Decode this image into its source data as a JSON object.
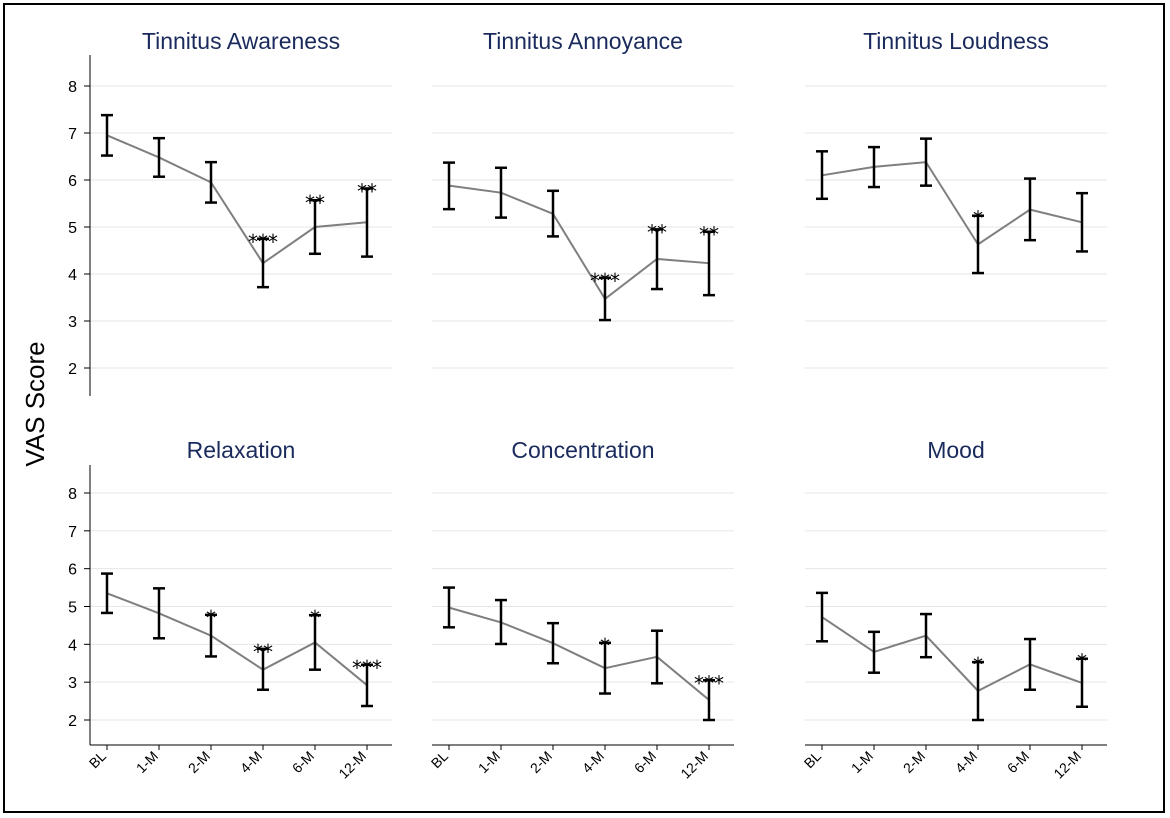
{
  "chart_data": {
    "type": "line",
    "ylabel": "VAS Score",
    "categories": [
      "BL",
      "1-M",
      "2-M",
      "4-M",
      "6-M",
      "12-M"
    ],
    "yticks": [
      2,
      3,
      4,
      5,
      6,
      7,
      8
    ],
    "ylim": [
      1.5,
      8.5
    ],
    "panels": [
      {
        "title": "Tinnitus Awareness",
        "means": [
          6.95,
          6.48,
          5.95,
          4.23,
          5.0,
          5.1
        ],
        "ci_low": [
          6.52,
          6.07,
          5.52,
          3.72,
          4.43,
          4.37
        ],
        "ci_high": [
          7.38,
          6.89,
          6.38,
          4.75,
          5.57,
          5.82
        ],
        "significance": [
          "",
          "",
          "",
          "***",
          "**",
          "**"
        ]
      },
      {
        "title": "Tinnitus Annoyance",
        "means": [
          5.88,
          5.73,
          5.28,
          3.47,
          4.32,
          4.23
        ],
        "ci_low": [
          5.38,
          5.2,
          4.8,
          3.02,
          3.68,
          3.55
        ],
        "ci_high": [
          6.37,
          6.26,
          5.77,
          3.92,
          4.95,
          4.9
        ],
        "significance": [
          "",
          "",
          "",
          "***",
          "**",
          "**"
        ]
      },
      {
        "title": "Tinnitus Loudness",
        "means": [
          6.1,
          6.28,
          6.38,
          4.63,
          5.37,
          5.1
        ],
        "ci_low": [
          5.6,
          5.85,
          5.88,
          4.02,
          4.72,
          4.48
        ],
        "ci_high": [
          6.61,
          6.7,
          6.88,
          5.24,
          6.03,
          5.72
        ],
        "significance": [
          "",
          "",
          "",
          "*",
          "",
          ""
        ]
      },
      {
        "title": "Relaxation",
        "means": [
          5.35,
          4.82,
          4.23,
          3.33,
          4.05,
          2.92
        ],
        "ci_low": [
          4.83,
          4.16,
          3.68,
          2.8,
          3.33,
          2.37
        ],
        "ci_high": [
          5.87,
          5.48,
          4.78,
          3.88,
          4.77,
          3.46
        ],
        "significance": [
          "",
          "",
          "*",
          "**",
          "*",
          "***"
        ]
      },
      {
        "title": "Concentration",
        "means": [
          4.97,
          4.58,
          4.03,
          3.37,
          3.67,
          2.53
        ],
        "ci_low": [
          4.45,
          4.01,
          3.5,
          2.7,
          2.97,
          2.0
        ],
        "ci_high": [
          5.5,
          5.17,
          4.56,
          4.04,
          4.36,
          3.05
        ],
        "significance": [
          "",
          "",
          "",
          "*",
          "",
          "***"
        ]
      },
      {
        "title": "Mood",
        "means": [
          4.72,
          3.8,
          4.23,
          2.77,
          3.47,
          2.98
        ],
        "ci_low": [
          4.08,
          3.25,
          3.66,
          2.0,
          2.8,
          2.35
        ],
        "ci_high": [
          5.36,
          4.33,
          4.8,
          3.53,
          4.14,
          3.62
        ],
        "significance": [
          "",
          "",
          "",
          "*",
          "",
          "*"
        ]
      }
    ]
  },
  "colors": {
    "line": "#7f7f7f",
    "error_bar": "#000000",
    "grid": "#e6e6e6",
    "title": "#1a2a5c"
  }
}
